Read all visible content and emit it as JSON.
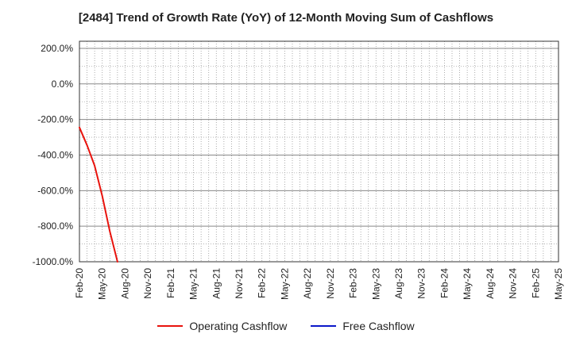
{
  "chart_data": {
    "type": "line",
    "title": "[2484]  Trend of Growth Rate (YoY) of 12-Month Moving Sum of Cashflows",
    "xlabel": "",
    "ylabel": "",
    "ylim": [
      -1000,
      240
    ],
    "y_ticks": [
      200,
      0,
      -200,
      -400,
      -600,
      -800,
      -1000
    ],
    "y_tick_labels": [
      "200.0%",
      "0.0%",
      "-200.0%",
      "-400.0%",
      "-600.0%",
      "-800.0%",
      "-1000.0%"
    ],
    "x_tick_labels": [
      "Feb-20",
      "May-20",
      "Aug-20",
      "Nov-20",
      "Feb-21",
      "May-21",
      "Aug-21",
      "Nov-21",
      "Feb-22",
      "May-22",
      "Aug-22",
      "Nov-22",
      "Feb-23",
      "May-23",
      "Aug-23",
      "Nov-23",
      "Feb-24",
      "May-24",
      "Aug-24",
      "Nov-24",
      "Feb-25",
      "May-25"
    ],
    "x_start": "Feb-20",
    "x_end": "May-25",
    "grid": true,
    "legend_position": "bottom",
    "series": [
      {
        "name": "Operating Cashflow",
        "color": "#e8130d",
        "points": [
          {
            "x": "Feb-20",
            "y": -245
          },
          {
            "x": "Mar-20",
            "y": -345
          },
          {
            "x": "Apr-20",
            "y": -460
          },
          {
            "x": "May-20",
            "y": -630
          },
          {
            "x": "Jun-20",
            "y": -830
          },
          {
            "x": "Jul-20",
            "y": -1000
          }
        ]
      },
      {
        "name": "Free Cashflow",
        "color": "#0b18c9",
        "points": []
      }
    ]
  }
}
